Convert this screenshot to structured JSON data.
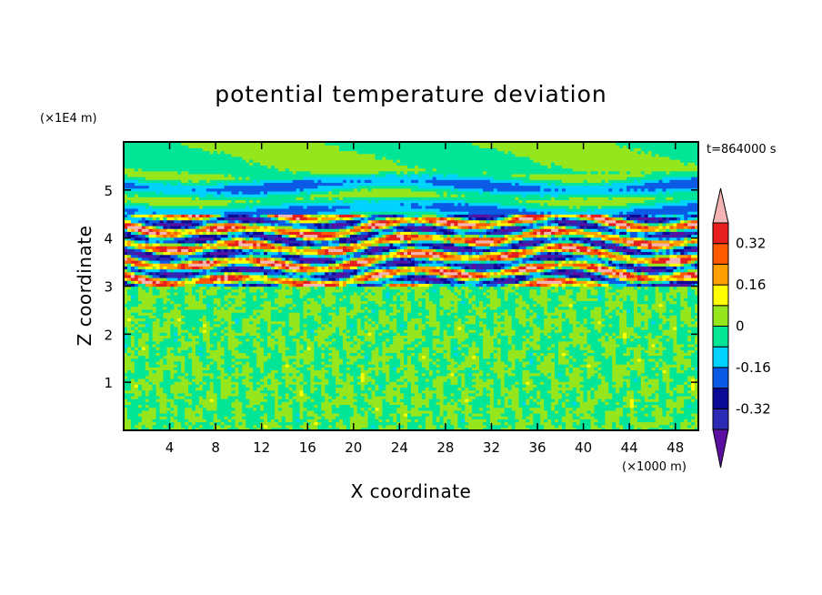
{
  "chart_data": {
    "type": "heatmap",
    "title": "potential temperature deviation",
    "xlabel": "X coordinate",
    "ylabel": "Z coordinate",
    "x_unit": "(×1000 m)",
    "y_unit": "(×1E4 m)",
    "time_label": "t=864000 s",
    "xlim": [
      0,
      50
    ],
    "ylim": [
      0,
      6
    ],
    "x_ticks": [
      4,
      8,
      12,
      16,
      20,
      24,
      28,
      32,
      36,
      40,
      44,
      48
    ],
    "y_ticks": [
      1,
      2,
      3,
      4,
      5
    ],
    "colorbar": {
      "levels": [
        -0.4,
        -0.32,
        -0.24,
        -0.16,
        -0.08,
        0,
        0.08,
        0.16,
        0.24,
        0.32,
        0.4
      ],
      "labeled_levels": [
        0.32,
        0.16,
        0,
        -0.16,
        -0.32
      ],
      "colors": [
        "#5a0fa0",
        "#2a2ab4",
        "#0a0a96",
        "#0a5ae6",
        "#00d2ff",
        "#00e696",
        "#96e61e",
        "#ffff00",
        "#ffa000",
        "#ff5a00",
        "#e61e1e",
        "#f5b4b4"
      ]
    },
    "bands": [
      {
        "z": [
          0,
          3.0
        ],
        "pattern": "fine-noise",
        "values": [
          -0.08,
          0.08
        ]
      },
      {
        "z": [
          3.0,
          4.5
        ],
        "pattern": "strong-layered",
        "values": [
          -0.4,
          0.4
        ]
      },
      {
        "z": [
          4.5,
          5.4
        ],
        "pattern": "weak-wave",
        "values": [
          -0.32,
          0.16
        ]
      },
      {
        "z": [
          5.4,
          6.0
        ],
        "pattern": "near-zero",
        "values": [
          -0.08,
          0.08
        ]
      }
    ]
  }
}
